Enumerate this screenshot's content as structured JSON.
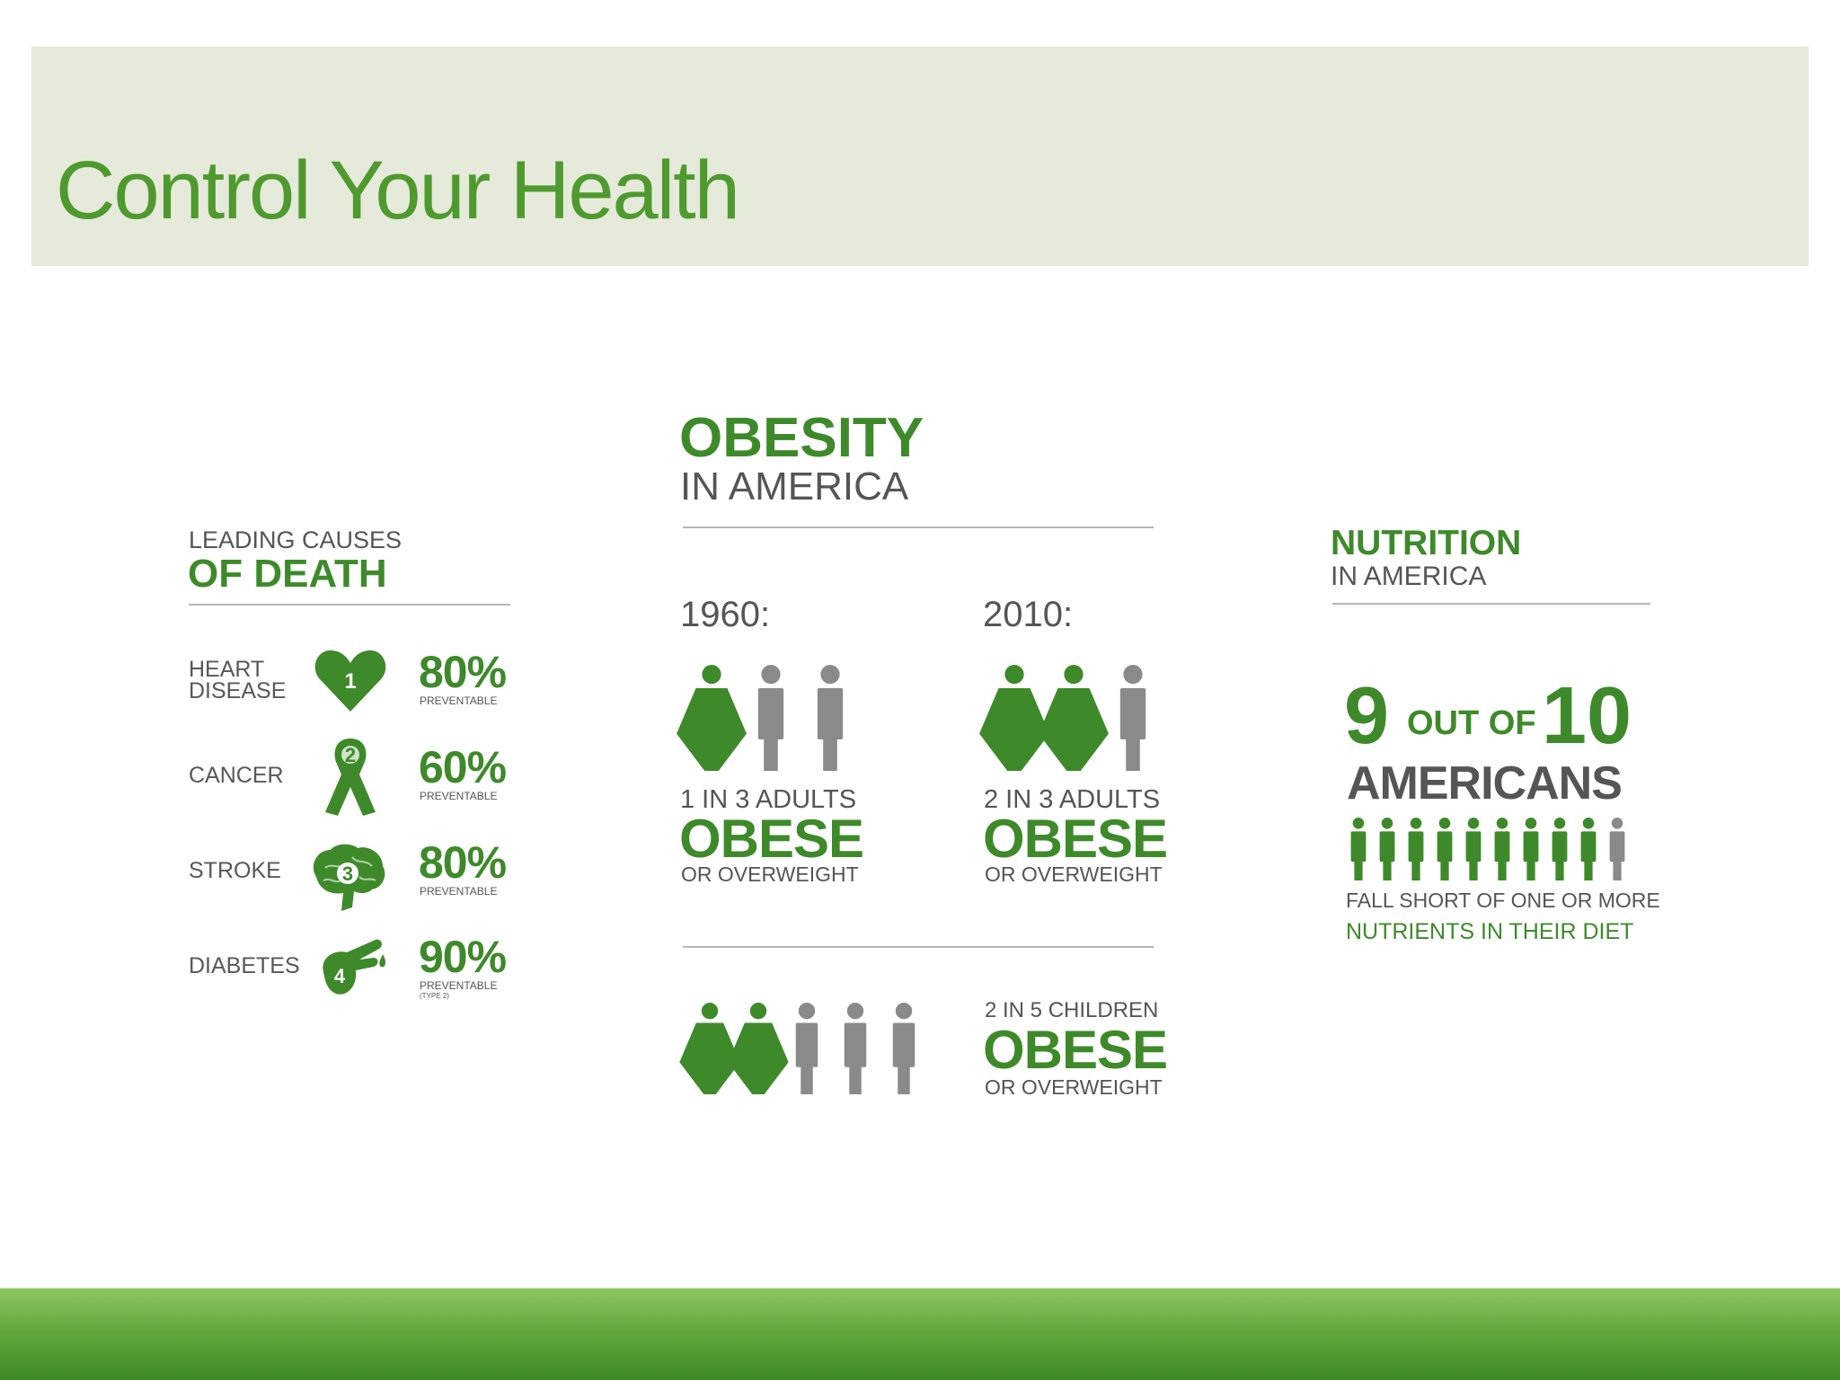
{
  "title": "Control Your Health",
  "colors": {
    "green": "#3e8a2a",
    "gray": "#8a8a8a",
    "header_bg": "#e6eadb"
  },
  "death": {
    "heading_small": "LEADING CAUSES",
    "heading_big": "OF DEATH",
    "items": [
      {
        "name_line1": "HEART",
        "name_line2": "DISEASE",
        "rank": "1",
        "icon": "heart-icon",
        "pct": "80%",
        "note": "PREVENTABLE"
      },
      {
        "name_line1": "CANCER",
        "rank": "2",
        "icon": "ribbon-icon",
        "pct": "60%",
        "note": "PREVENTABLE"
      },
      {
        "name_line1": "STROKE",
        "rank": "3",
        "icon": "brain-icon",
        "pct": "80%",
        "note": "PREVENTABLE"
      },
      {
        "name_line1": "DIABETES",
        "rank": "4",
        "icon": "finger-drop-icon",
        "pct": "90%",
        "note": "PREVENTABLE",
        "note2": "(TYPE 2)"
      }
    ]
  },
  "obesity": {
    "heading_big": "OBESITY",
    "heading_small": "IN AMERICA",
    "y1960": {
      "year": "1960:",
      "line1": "1 IN 3 ADULTS",
      "line2": "OBESE",
      "line3": "OR OVERWEIGHT",
      "highlighted": 1,
      "total": 3
    },
    "y2010": {
      "year": "2010:",
      "line1": "2 IN 3 ADULTS",
      "line2": "OBESE",
      "line3": "OR OVERWEIGHT",
      "highlighted": 2,
      "total": 3
    },
    "children": {
      "line1": "2 IN 5 CHILDREN",
      "line2": "OBESE",
      "line3": "OR OVERWEIGHT",
      "highlighted": 2,
      "total": 5
    }
  },
  "nutrition": {
    "heading_big": "NUTRITION",
    "heading_small": "IN AMERICA",
    "num1": "9",
    "mid": "OUT OF",
    "num2": "10",
    "americans": "AMERICANS",
    "highlighted": 9,
    "total": 10,
    "line1": "FALL SHORT OF ONE OR MORE",
    "line2": "NUTRIENTS IN THEIR DIET"
  }
}
